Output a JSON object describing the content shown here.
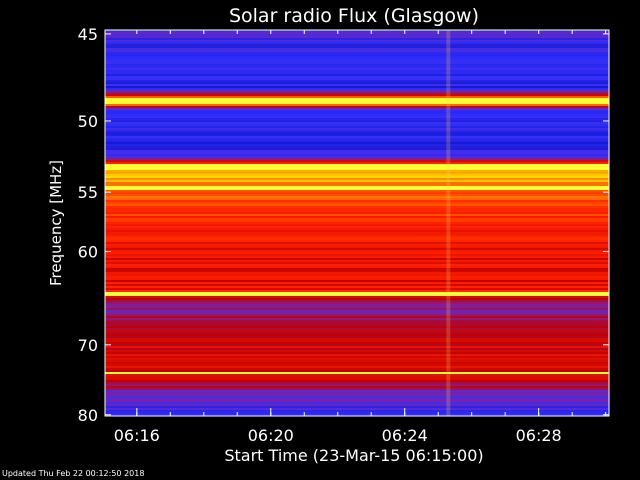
{
  "chart_data": {
    "type": "heatmap",
    "title": "Solar radio Flux (Glasgow)",
    "xlabel": "Start Time (23-Mar-15 06:15:00)",
    "ylabel": "Frequency [MHz]",
    "x_ticks": [
      {
        "label": "06:16",
        "minutes": 16
      },
      {
        "label": "06:20",
        "minutes": 20
      },
      {
        "label": "06:24",
        "minutes": 24
      },
      {
        "label": "06:28",
        "minutes": 28
      }
    ],
    "x_range_minutes": [
      15.05,
      30.1
    ],
    "y_ticks": [
      45,
      50,
      55,
      60,
      70,
      80
    ],
    "y_range_mhz": [
      44.8,
      80.2
    ],
    "y_scale": "reciprocal",
    "colormap": [
      "#000000",
      "#1010c0",
      "#3030ff",
      "#8020a0",
      "#c00000",
      "#ff2000",
      "#ff8000",
      "#ffff00",
      "#ffffff"
    ],
    "frequency_profile": [
      {
        "mhz": 45.0,
        "level": 0.28
      },
      {
        "mhz": 46.0,
        "level": 0.22
      },
      {
        "mhz": 47.0,
        "level": 0.24
      },
      {
        "mhz": 48.0,
        "level": 0.2
      },
      {
        "mhz": 48.8,
        "level": 0.95
      },
      {
        "mhz": 49.3,
        "level": 0.25
      },
      {
        "mhz": 50.5,
        "level": 0.22
      },
      {
        "mhz": 51.5,
        "level": 0.2
      },
      {
        "mhz": 52.5,
        "level": 0.3
      },
      {
        "mhz": 53.0,
        "level": 0.8
      },
      {
        "mhz": 54.0,
        "level": 0.78
      },
      {
        "mhz": 56.0,
        "level": 0.66
      },
      {
        "mhz": 58.0,
        "level": 0.62
      },
      {
        "mhz": 60.0,
        "level": 0.58
      },
      {
        "mhz": 62.0,
        "level": 0.55
      },
      {
        "mhz": 64.0,
        "level": 0.58
      },
      {
        "mhz": 66.0,
        "level": 0.38
      },
      {
        "mhz": 68.0,
        "level": 0.5
      },
      {
        "mhz": 70.0,
        "level": 0.52
      },
      {
        "mhz": 72.0,
        "level": 0.55
      },
      {
        "mhz": 74.0,
        "level": 0.56
      },
      {
        "mhz": 76.0,
        "level": 0.4
      },
      {
        "mhz": 78.0,
        "level": 0.3
      },
      {
        "mhz": 80.0,
        "level": 0.22
      }
    ],
    "bright_lines_mhz": [
      48.8,
      53.1,
      54.7,
      64.1,
      73.8
    ],
    "burst_minutes": [
      25.3
    ],
    "grid": false,
    "legend": "none"
  },
  "footer": {
    "updated": "Updated Thu Feb 22 00:12:50 2018"
  }
}
